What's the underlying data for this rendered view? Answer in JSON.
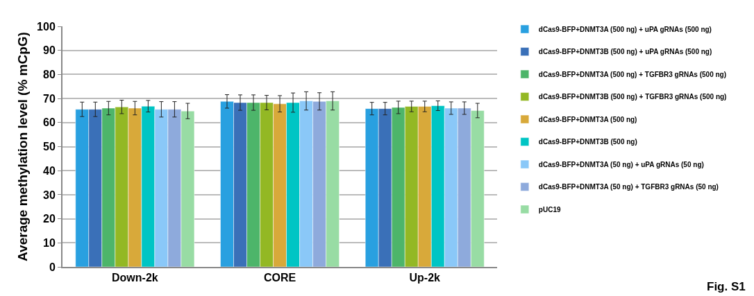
{
  "chart_data": {
    "type": "bar",
    "ylabel": "Average methylation level (% mCpG)",
    "categories": [
      "Down-2k",
      "CORE",
      "Up-2k"
    ],
    "series": [
      {
        "name": "dCas9-BFP+DNMT3A (500 ng) + uPA gRNAs (500 ng)",
        "color": "#29a0e0",
        "values": [
          65.5,
          68.8,
          65.8
        ],
        "errors": [
          3,
          2.8,
          2.6
        ]
      },
      {
        "name": "dCas9-BFP+DNMT3B (500 ng) + uPA gRNAs (500 ng)",
        "color": "#3a70b8",
        "values": [
          65.5,
          68.3,
          65.8
        ],
        "errors": [
          3,
          3.2,
          2.6
        ]
      },
      {
        "name": "dCas9-BFP+DNMT3A (500 ng) + TGFBR3 gRNAs (500 ng)",
        "color": "#4db56a",
        "values": [
          66,
          68.3,
          66.3
        ],
        "errors": [
          2.8,
          3.2,
          2.6
        ]
      },
      {
        "name": "dCas9-BFP+DNMT3B (500 ng) + TGFBR3 gRNAs (500 ng)",
        "color": "#93b824",
        "values": [
          66.5,
          68.3,
          66.7
        ],
        "errors": [
          2.8,
          3,
          2.2
        ]
      },
      {
        "name": "dCas9-BFP+DNMT3A (500 ng)",
        "color": "#d8a93a",
        "values": [
          66,
          67.8,
          66.7
        ],
        "errors": [
          2.8,
          3.4,
          2.2
        ]
      },
      {
        "name": "dCas9-BFP+DNMT3B (500 ng)",
        "color": "#00c5c4",
        "values": [
          66.8,
          68.3,
          67
        ],
        "errors": [
          2.4,
          4,
          2
        ]
      },
      {
        "name": "dCas9-BFP+DNMT3A (50 ng) + uPA gRNAs (50 ng)",
        "color": "#8ac8f8",
        "values": [
          65.5,
          69,
          66
        ],
        "errors": [
          3.2,
          3.8,
          2.6
        ]
      },
      {
        "name": "dCas9-BFP+DNMT3A (50 ng) + TGFBR3 gRNAs (50 ng)",
        "color": "#8eaadc",
        "values": [
          65.5,
          68.8,
          66
        ],
        "errors": [
          3.2,
          3.6,
          2.6
        ]
      },
      {
        "name": "pUC19",
        "color": "#98dca4",
        "values": [
          64.8,
          69,
          65
        ],
        "errors": [
          3.2,
          3.8,
          3
        ]
      }
    ],
    "ylim": [
      0,
      100
    ],
    "yticks": [
      0,
      10,
      20,
      30,
      40,
      50,
      60,
      70,
      80,
      90,
      100
    ],
    "grid": "y",
    "legend": "right",
    "annotations": [
      "Fig. S1"
    ]
  }
}
